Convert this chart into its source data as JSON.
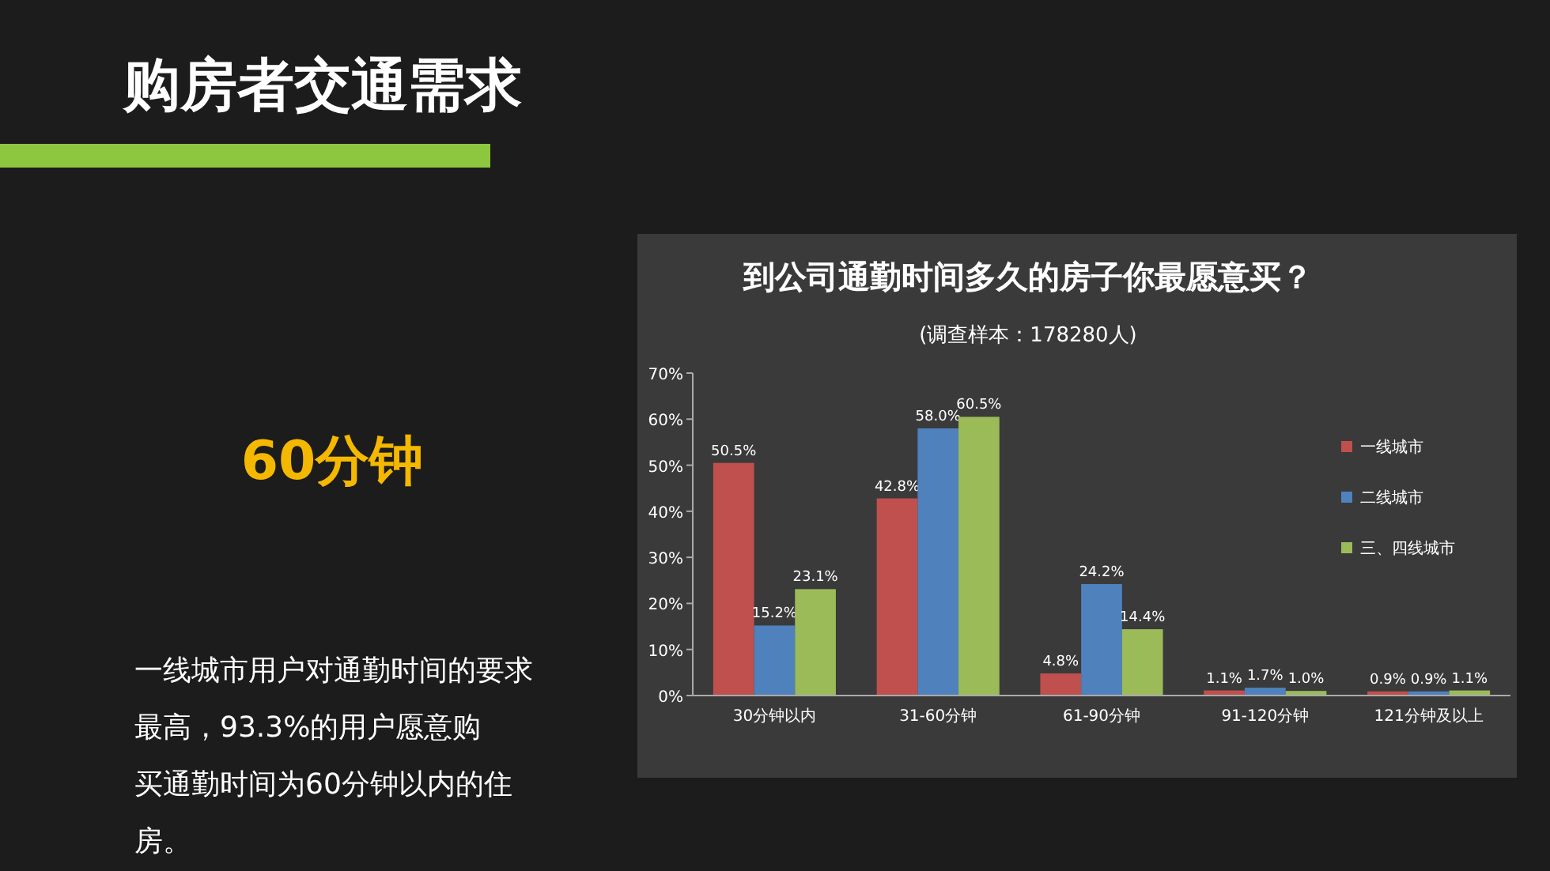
{
  "chart_data": {
    "type": "bar",
    "title": "到公司通勤时间多久的房子你最愿意买？",
    "subtitle": "(调查样本：178280人)",
    "annotations": [
      "购房者交通需求",
      "60分钟",
      "一线城市用户对通勤时间的要求最高，93.3%的用户愿意购买通勤时间为60分钟以内的住房。"
    ],
    "categories": [
      "30分钟以内",
      "31-60分钟",
      "61-90分钟",
      "91-120分钟",
      "121分钟及以上"
    ],
    "series": [
      {
        "name": "一线城市",
        "color": "#c0504d",
        "values": [
          50.5,
          42.8,
          4.8,
          1.1,
          0.9
        ],
        "value_labels": [
          "50.5%",
          "42.8%",
          "4.8%",
          "1.1%",
          "0.9%"
        ]
      },
      {
        "name": "二线城市",
        "color": "#4f81bd",
        "values": [
          15.2,
          58.0,
          24.2,
          1.7,
          0.9
        ],
        "value_labels": [
          "15.2%",
          "58.0%",
          "24.2%",
          "1.7%",
          "0.9%"
        ]
      },
      {
        "name": "三、四线城市",
        "color": "#9bbb59",
        "values": [
          23.1,
          60.5,
          14.4,
          1.0,
          1.1
        ],
        "value_labels": [
          "23.1%",
          "60.5%",
          "14.4%",
          "1.0%",
          "1.1%"
        ]
      }
    ],
    "ylim": [
      0,
      70
    ],
    "yticks": [
      {
        "value": 0,
        "label": "0%"
      },
      {
        "value": 10,
        "label": "10%"
      },
      {
        "value": 20,
        "label": "20%"
      },
      {
        "value": 30,
        "label": "30%"
      },
      {
        "value": 40,
        "label": "40%"
      },
      {
        "value": 50,
        "label": "50%"
      },
      {
        "value": 60,
        "label": "60%"
      },
      {
        "value": 70,
        "label": "70%"
      }
    ],
    "legend": "right",
    "grid": false
  }
}
